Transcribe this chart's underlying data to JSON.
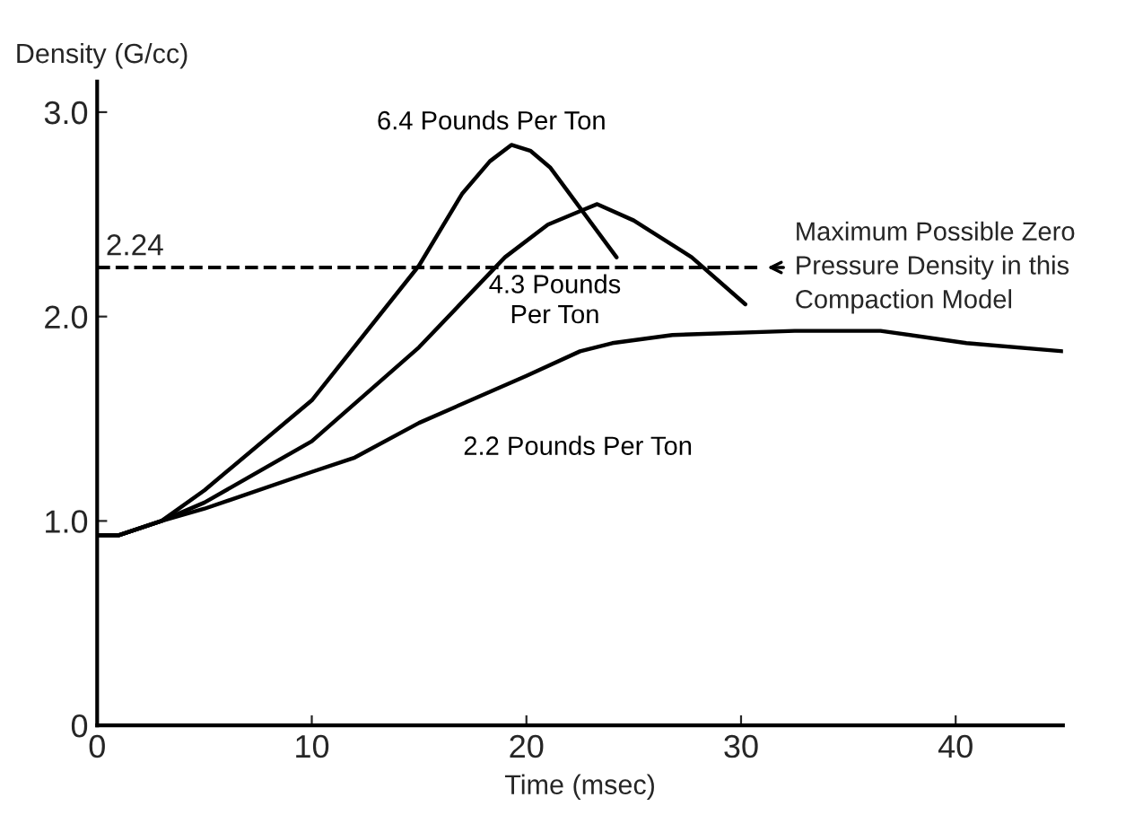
{
  "chart_data": {
    "type": "line",
    "xlabel": "Time (msec)",
    "ylabel": "Density (G/cc)",
    "xlim": [
      0,
      45
    ],
    "ylim": [
      0,
      3.15
    ],
    "xticks": [
      0,
      10,
      20,
      30,
      40
    ],
    "yticks": [
      0,
      {
        "value": 1.0,
        "label": "1.0"
      },
      {
        "value": 2.0,
        "label": "2.0"
      },
      {
        "value": 3.0,
        "label": "3.0"
      }
    ],
    "grid": false,
    "legend": false,
    "marker": "none",
    "line_style": "solid",
    "series": [
      {
        "name": "6.4 Pounds Per Ton",
        "color": "#000000",
        "x": [
          0,
          1,
          3,
          5,
          10,
          15,
          17,
          18.3,
          19.3,
          20.2,
          21.1,
          24.2
        ],
        "values": [
          0.93,
          0.93,
          1.0,
          1.15,
          1.59,
          2.25,
          2.6,
          2.76,
          2.84,
          2.81,
          2.73,
          2.29
        ]
      },
      {
        "name": "4.3 Pounds\nPer Ton",
        "color": "#000000",
        "x": [
          0,
          1,
          3,
          5,
          10,
          15,
          19,
          21,
          22.6,
          23.3,
          25,
          27.7,
          30.2
        ],
        "values": [
          0.93,
          0.93,
          1.0,
          1.09,
          1.39,
          1.85,
          2.29,
          2.45,
          2.52,
          2.55,
          2.47,
          2.29,
          2.06
        ]
      },
      {
        "name": "2.2 Pounds Per Ton",
        "color": "#000000",
        "x": [
          0,
          1,
          3,
          5,
          10,
          12,
          15,
          20,
          22.5,
          24,
          26.8,
          32.5,
          36.5,
          40.5,
          45
        ],
        "values": [
          0.93,
          0.93,
          1.0,
          1.06,
          1.24,
          1.31,
          1.48,
          1.71,
          1.83,
          1.87,
          1.91,
          1.93,
          1.93,
          1.87,
          1.83
        ]
      }
    ],
    "ref_lines": [
      {
        "axis": "y",
        "value": 2.24,
        "label": "2.24",
        "line_style": "dashed",
        "color": "#000000"
      }
    ],
    "annotations": [
      {
        "text": "Maximum Possible Zero\nPressure Density in this\nCompaction Model",
        "x": 31,
        "y": 2.24
      }
    ]
  }
}
